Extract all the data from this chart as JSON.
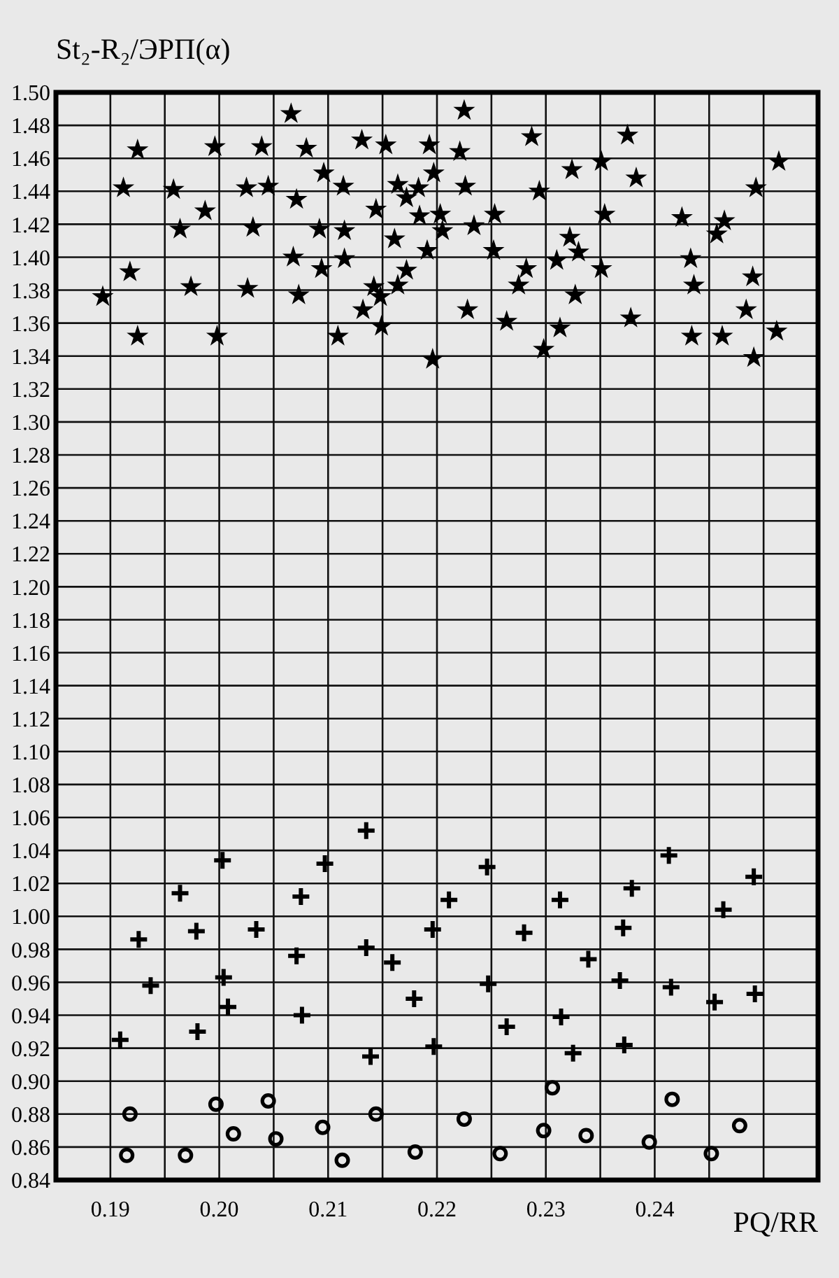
{
  "chart_data": {
    "type": "scatter",
    "ylabel": "St₂-R₂/ЭРП(α)",
    "xlabel": "PQ/RR",
    "grid": true,
    "xlim": [
      0.185,
      0.255
    ],
    "ylim": [
      0.84,
      1.5
    ],
    "xticks": [
      {
        "value": 0.19,
        "label": "0.19"
      },
      {
        "value": 0.195,
        "label": null
      },
      {
        "value": 0.2,
        "label": "0.20"
      },
      {
        "value": 0.205,
        "label": null
      },
      {
        "value": 0.21,
        "label": "0.21"
      },
      {
        "value": 0.215,
        "label": null
      },
      {
        "value": 0.22,
        "label": "0.22"
      },
      {
        "value": 0.225,
        "label": null
      },
      {
        "value": 0.23,
        "label": "0.23"
      },
      {
        "value": 0.235,
        "label": null
      },
      {
        "value": 0.24,
        "label": "0.24"
      },
      {
        "value": 0.245,
        "label": null
      },
      {
        "value": 0.25,
        "label": null
      }
    ],
    "yticks": [
      {
        "value": 0.84,
        "label": "0.84"
      },
      {
        "value": 0.86,
        "label": "0.86"
      },
      {
        "value": 0.88,
        "label": "0.88"
      },
      {
        "value": 0.9,
        "label": "0.90"
      },
      {
        "value": 0.92,
        "label": "0.92"
      },
      {
        "value": 0.94,
        "label": "0.94"
      },
      {
        "value": 0.96,
        "label": "0.96"
      },
      {
        "value": 0.98,
        "label": "0.98"
      },
      {
        "value": 1.0,
        "label": "1.00"
      },
      {
        "value": 1.02,
        "label": "1.02"
      },
      {
        "value": 1.04,
        "label": "1.04"
      },
      {
        "value": 1.06,
        "label": "1.06"
      },
      {
        "value": 1.08,
        "label": "1.08"
      },
      {
        "value": 1.1,
        "label": "1.10"
      },
      {
        "value": 1.12,
        "label": "1.12"
      },
      {
        "value": 1.14,
        "label": "1.14"
      },
      {
        "value": 1.16,
        "label": "1.16"
      },
      {
        "value": 1.18,
        "label": "1.18"
      },
      {
        "value": 1.2,
        "label": "1.20"
      },
      {
        "value": 1.22,
        "label": "1.22"
      },
      {
        "value": 1.24,
        "label": "1.24"
      },
      {
        "value": 1.26,
        "label": "1.26"
      },
      {
        "value": 1.28,
        "label": "1.28"
      },
      {
        "value": 1.3,
        "label": "1.30"
      },
      {
        "value": 1.32,
        "label": "1.32"
      },
      {
        "value": 1.34,
        "label": "1.34"
      },
      {
        "value": 1.36,
        "label": "1.36"
      },
      {
        "value": 1.38,
        "label": "1.38"
      },
      {
        "value": 1.4,
        "label": "1.40"
      },
      {
        "value": 1.42,
        "label": "1.42"
      },
      {
        "value": 1.44,
        "label": "1.44"
      },
      {
        "value": 1.46,
        "label": "1.46"
      },
      {
        "value": 1.48,
        "label": "1.48"
      },
      {
        "value": 1.5,
        "label": "1.50"
      }
    ],
    "series": [
      {
        "type": "scatter",
        "marker": "star",
        "color": "#000000",
        "x": [
          0.1893,
          0.1912,
          0.1918,
          0.1925,
          0.1925,
          0.1958,
          0.1964,
          0.1974,
          0.1987,
          0.1996,
          0.1998,
          0.2025,
          0.2026,
          0.2031,
          0.2039,
          0.2045,
          0.2066,
          0.2071,
          0.2068,
          0.2073,
          0.208,
          0.2096,
          0.2092,
          0.2094,
          0.2109,
          0.2114,
          0.2115,
          0.2115,
          0.2131,
          0.2132,
          0.2144,
          0.2142,
          0.2148,
          0.2149,
          0.2153,
          0.2164,
          0.2161,
          0.2164,
          0.2172,
          0.2172,
          0.2183,
          0.2184,
          0.2193,
          0.2197,
          0.2203,
          0.2205,
          0.2191,
          0.2196,
          0.2225,
          0.2221,
          0.2226,
          0.2234,
          0.2228,
          0.2253,
          0.2252,
          0.2264,
          0.2275,
          0.2282,
          0.2287,
          0.2294,
          0.2298,
          0.2313,
          0.231,
          0.2322,
          0.2324,
          0.233,
          0.2327,
          0.2351,
          0.2354,
          0.2351,
          0.2375,
          0.2383,
          0.2378,
          0.2425,
          0.2433,
          0.2436,
          0.2434,
          0.2457,
          0.2464,
          0.2462,
          0.2484,
          0.249,
          0.2493,
          0.2491,
          0.2514,
          0.2512
        ],
        "values": [
          1.376,
          1.442,
          1.391,
          1.465,
          1.352,
          1.441,
          1.417,
          1.382,
          1.428,
          1.467,
          1.352,
          1.442,
          1.381,
          1.418,
          1.467,
          1.443,
          1.487,
          1.435,
          1.4,
          1.377,
          1.466,
          1.451,
          1.417,
          1.393,
          1.352,
          1.443,
          1.416,
          1.399,
          1.471,
          1.368,
          1.429,
          1.382,
          1.376,
          1.358,
          1.468,
          1.444,
          1.411,
          1.383,
          1.392,
          1.436,
          1.442,
          1.425,
          1.468,
          1.451,
          1.426,
          1.416,
          1.404,
          1.338,
          1.489,
          1.464,
          1.443,
          1.419,
          1.368,
          1.426,
          1.404,
          1.361,
          1.383,
          1.393,
          1.473,
          1.44,
          1.344,
          1.357,
          1.398,
          1.412,
          1.453,
          1.403,
          1.377,
          1.458,
          1.426,
          1.393,
          1.474,
          1.448,
          1.363,
          1.424,
          1.399,
          1.383,
          1.352,
          1.414,
          1.422,
          1.352,
          1.368,
          1.388,
          1.442,
          1.339,
          1.458,
          1.355
        ]
      },
      {
        "type": "scatter",
        "marker": "cross",
        "color": "#000000",
        "x": [
          0.1909,
          0.1926,
          0.1937,
          0.1964,
          0.1979,
          0.198,
          0.2003,
          0.2004,
          0.2008,
          0.2034,
          0.2071,
          0.2075,
          0.2076,
          0.2097,
          0.2135,
          0.2135,
          0.2139,
          0.2159,
          0.2179,
          0.2196,
          0.2197,
          0.2211,
          0.2246,
          0.2247,
          0.2264,
          0.228,
          0.2313,
          0.2314,
          0.2325,
          0.2339,
          0.2368,
          0.2371,
          0.2379,
          0.2372,
          0.2413,
          0.2415,
          0.2455,
          0.2463,
          0.2491,
          0.2492
        ],
        "values": [
          0.925,
          0.986,
          0.958,
          1.014,
          0.991,
          0.93,
          1.034,
          0.963,
          0.945,
          0.992,
          0.976,
          1.012,
          0.94,
          1.032,
          1.052,
          0.981,
          0.915,
          0.972,
          0.95,
          0.992,
          0.921,
          1.01,
          1.03,
          0.959,
          0.933,
          0.99,
          1.01,
          0.939,
          0.917,
          0.974,
          0.961,
          0.993,
          1.017,
          0.922,
          1.037,
          0.957,
          0.948,
          1.004,
          1.024,
          0.953
        ]
      },
      {
        "type": "scatter",
        "marker": "circle",
        "color": "#000000",
        "x": [
          0.1918,
          0.1915,
          0.1969,
          0.1997,
          0.2013,
          0.2045,
          0.2052,
          0.2095,
          0.2113,
          0.2144,
          0.218,
          0.2225,
          0.2258,
          0.2298,
          0.2306,
          0.2337,
          0.2395,
          0.2416,
          0.2452,
          0.2478
        ],
        "values": [
          0.88,
          0.855,
          0.855,
          0.886,
          0.868,
          0.888,
          0.865,
          0.872,
          0.852,
          0.88,
          0.857,
          0.877,
          0.856,
          0.87,
          0.896,
          0.867,
          0.863,
          0.889,
          0.856,
          0.873
        ]
      }
    ]
  }
}
